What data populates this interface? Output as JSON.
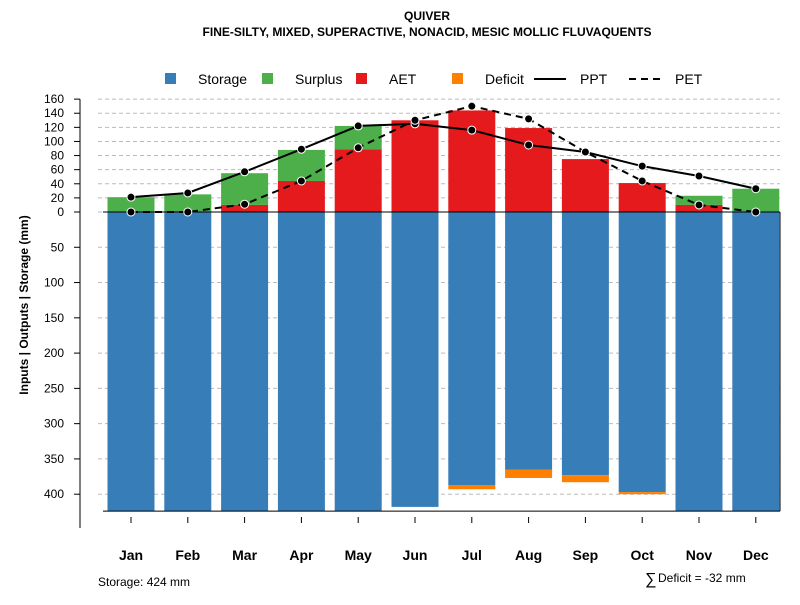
{
  "chart_data": {
    "type": "bar",
    "title": "QUIVER",
    "subtitle": "FINE-SILTY, MIXED, SUPERACTIVE, NONACID, MESIC MOLLIC FLUVAQUENTS",
    "ylabel": "Inputs | Outputs | Storage    (mm)",
    "categories": [
      "Jan",
      "Feb",
      "Mar",
      "Apr",
      "May",
      "Jun",
      "Jul",
      "Aug",
      "Sep",
      "Oct",
      "Nov",
      "Dec"
    ],
    "yticks_up": [
      0,
      20,
      40,
      60,
      80,
      100,
      120,
      140,
      160
    ],
    "yticks_down": [
      50,
      100,
      150,
      200,
      250,
      300,
      350,
      400
    ],
    "ylim": [
      -424,
      160
    ],
    "legend": [
      {
        "label": "Storage",
        "color": "#377EB8",
        "kind": "box"
      },
      {
        "label": "Surplus",
        "color": "#4DAF4A",
        "kind": "box"
      },
      {
        "label": "AET",
        "color": "#E41A1C",
        "kind": "box"
      },
      {
        "label": "Deficit",
        "color": "#FF7F00",
        "kind": "box"
      },
      {
        "label": "PPT",
        "color": "#000000",
        "kind": "solid"
      },
      {
        "label": "PET",
        "color": "#000000",
        "kind": "dashed"
      }
    ],
    "series": [
      {
        "name": "Storage",
        "values": [
          424,
          424,
          424,
          424,
          424,
          418,
          387,
          365,
          373,
          397,
          424,
          424
        ]
      },
      {
        "name": "Deficit",
        "values": [
          0,
          0,
          0,
          0,
          0,
          0,
          6,
          12,
          10,
          3,
          0,
          0
        ]
      },
      {
        "name": "AET",
        "values": [
          0,
          0,
          10,
          44,
          89,
          130,
          144,
          119,
          75,
          41,
          10,
          0
        ]
      },
      {
        "name": "Surplus",
        "values": [
          21,
          25,
          45,
          44,
          33,
          0,
          0,
          0,
          0,
          0,
          13,
          33
        ]
      },
      {
        "name": "PPT",
        "values": [
          21,
          27,
          57,
          89,
          122,
          125,
          116,
          95,
          85,
          65,
          51,
          33
        ]
      },
      {
        "name": "PET",
        "values": [
          0,
          0,
          11,
          44,
          91,
          130,
          150,
          132,
          85,
          44,
          10,
          0
        ]
      }
    ],
    "annotations": {
      "storage": "Storage: 424 mm",
      "deficit_symbol": "∑",
      "deficit": "Deficit = -32 mm"
    }
  }
}
